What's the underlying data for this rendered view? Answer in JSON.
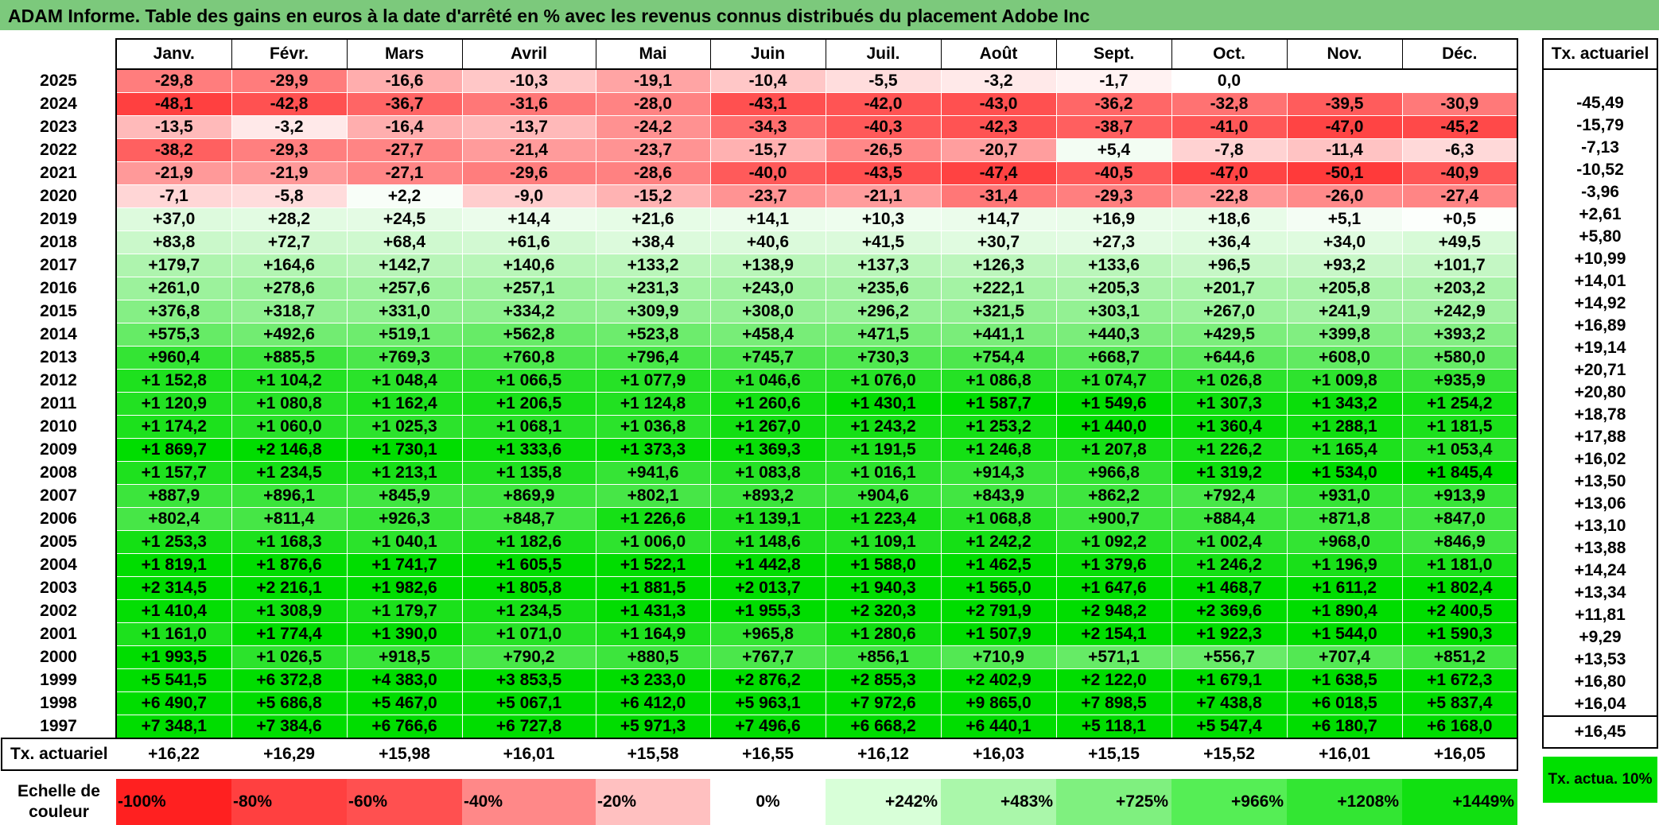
{
  "title": "ADAM Informe. Table des gains en euros à la date d'arrêté en % avec les revenus connus distribués du placement Adobe Inc",
  "months": [
    "Janv.",
    "Févr.",
    "Mars",
    "Avril",
    "Mai",
    "Juin",
    "Juil.",
    "Août",
    "Sept.",
    "Oct.",
    "Nov.",
    "Déc."
  ],
  "side_header": "Tx. actuariel",
  "rows": [
    {
      "year": "2025",
      "values": [
        "-29,8",
        "-29,9",
        "-16,6",
        "-10,3",
        "-19,1",
        "-10,4",
        "-5,5",
        "-3,2",
        "-1,7",
        "0,0",
        "",
        ""
      ],
      "tx": ""
    },
    {
      "year": "2024",
      "values": [
        "-48,1",
        "-42,8",
        "-36,7",
        "-31,6",
        "-28,0",
        "-43,1",
        "-42,0",
        "-43,0",
        "-36,2",
        "-32,8",
        "-39,5",
        "-30,9"
      ],
      "tx": "-45,49"
    },
    {
      "year": "2023",
      "values": [
        "-13,5",
        "-3,2",
        "-16,4",
        "-13,7",
        "-24,2",
        "-34,3",
        "-40,3",
        "-42,3",
        "-38,7",
        "-41,0",
        "-47,0",
        "-45,2"
      ],
      "tx": "-15,79"
    },
    {
      "year": "2022",
      "values": [
        "-38,2",
        "-29,3",
        "-27,7",
        "-21,4",
        "-23,7",
        "-15,7",
        "-26,5",
        "-20,7",
        "+5,4",
        "-7,8",
        "-11,4",
        "-6,3"
      ],
      "tx": "-7,13"
    },
    {
      "year": "2021",
      "values": [
        "-21,9",
        "-21,9",
        "-27,1",
        "-29,6",
        "-28,6",
        "-40,0",
        "-43,5",
        "-47,4",
        "-40,5",
        "-47,0",
        "-50,1",
        "-40,9"
      ],
      "tx": "-10,52"
    },
    {
      "year": "2020",
      "values": [
        "-7,1",
        "-5,8",
        "+2,2",
        "-9,0",
        "-15,2",
        "-23,7",
        "-21,1",
        "-31,4",
        "-29,3",
        "-22,8",
        "-26,0",
        "-27,4"
      ],
      "tx": "-3,96"
    },
    {
      "year": "2019",
      "values": [
        "+37,0",
        "+28,2",
        "+24,5",
        "+14,4",
        "+21,6",
        "+14,1",
        "+10,3",
        "+14,7",
        "+16,9",
        "+18,6",
        "+5,1",
        "+0,5"
      ],
      "tx": "+2,61"
    },
    {
      "year": "2018",
      "values": [
        "+83,8",
        "+72,7",
        "+68,4",
        "+61,6",
        "+38,4",
        "+40,6",
        "+41,5",
        "+30,7",
        "+27,3",
        "+36,4",
        "+34,0",
        "+49,5"
      ],
      "tx": "+5,80"
    },
    {
      "year": "2017",
      "values": [
        "+179,7",
        "+164,6",
        "+142,7",
        "+140,6",
        "+133,2",
        "+138,9",
        "+137,3",
        "+126,3",
        "+133,6",
        "+96,5",
        "+93,2",
        "+101,7"
      ],
      "tx": "+10,99"
    },
    {
      "year": "2016",
      "values": [
        "+261,0",
        "+278,6",
        "+257,6",
        "+257,1",
        "+231,3",
        "+243,0",
        "+235,6",
        "+222,1",
        "+205,3",
        "+201,7",
        "+205,8",
        "+203,2"
      ],
      "tx": "+14,01"
    },
    {
      "year": "2015",
      "values": [
        "+376,8",
        "+318,7",
        "+331,0",
        "+334,2",
        "+309,9",
        "+308,0",
        "+296,2",
        "+321,5",
        "+303,1",
        "+267,0",
        "+241,9",
        "+242,9"
      ],
      "tx": "+14,92"
    },
    {
      "year": "2014",
      "values": [
        "+575,3",
        "+492,6",
        "+519,1",
        "+562,8",
        "+523,8",
        "+458,4",
        "+471,5",
        "+441,1",
        "+440,3",
        "+429,5",
        "+399,8",
        "+393,2"
      ],
      "tx": "+16,89"
    },
    {
      "year": "2013",
      "values": [
        "+960,4",
        "+885,5",
        "+769,3",
        "+760,8",
        "+796,4",
        "+745,7",
        "+730,3",
        "+754,4",
        "+668,7",
        "+644,6",
        "+608,0",
        "+580,0"
      ],
      "tx": "+19,14"
    },
    {
      "year": "2012",
      "values": [
        "+1 152,8",
        "+1 104,2",
        "+1 048,4",
        "+1 066,5",
        "+1 077,9",
        "+1 046,6",
        "+1 076,0",
        "+1 086,8",
        "+1 074,7",
        "+1 026,8",
        "+1 009,8",
        "+935,9"
      ],
      "tx": "+20,71"
    },
    {
      "year": "2011",
      "values": [
        "+1 120,9",
        "+1 080,8",
        "+1 162,4",
        "+1 206,5",
        "+1 124,8",
        "+1 260,6",
        "+1 430,1",
        "+1 587,7",
        "+1 549,6",
        "+1 307,3",
        "+1 343,2",
        "+1 254,2"
      ],
      "tx": "+20,80"
    },
    {
      "year": "2010",
      "values": [
        "+1 174,2",
        "+1 060,0",
        "+1 025,3",
        "+1 068,1",
        "+1 036,8",
        "+1 267,0",
        "+1 243,2",
        "+1 253,2",
        "+1 440,0",
        "+1 360,4",
        "+1 288,1",
        "+1 181,5"
      ],
      "tx": "+18,78"
    },
    {
      "year": "2009",
      "values": [
        "+1 869,7",
        "+2 146,8",
        "+1 730,1",
        "+1 333,6",
        "+1 373,3",
        "+1 369,3",
        "+1 191,5",
        "+1 246,8",
        "+1 207,8",
        "+1 226,2",
        "+1 165,4",
        "+1 053,4"
      ],
      "tx": "+17,88"
    },
    {
      "year": "2008",
      "values": [
        "+1 157,7",
        "+1 234,5",
        "+1 213,1",
        "+1 135,8",
        "+941,6",
        "+1 083,8",
        "+1 016,1",
        "+914,3",
        "+966,8",
        "+1 319,2",
        "+1 534,0",
        "+1 845,4"
      ],
      "tx": "+16,02"
    },
    {
      "year": "2007",
      "values": [
        "+887,9",
        "+896,1",
        "+845,9",
        "+869,9",
        "+802,1",
        "+893,2",
        "+904,6",
        "+843,9",
        "+862,2",
        "+792,4",
        "+931,0",
        "+913,9"
      ],
      "tx": "+13,50"
    },
    {
      "year": "2006",
      "values": [
        "+802,4",
        "+811,4",
        "+926,3",
        "+848,7",
        "+1 226,6",
        "+1 139,1",
        "+1 223,4",
        "+1 068,8",
        "+900,7",
        "+884,4",
        "+871,8",
        "+847,0"
      ],
      "tx": "+13,06"
    },
    {
      "year": "2005",
      "values": [
        "+1 253,3",
        "+1 168,3",
        "+1 040,1",
        "+1 182,6",
        "+1 006,0",
        "+1 148,6",
        "+1 109,1",
        "+1 242,2",
        "+1 092,2",
        "+1 002,4",
        "+968,0",
        "+846,9"
      ],
      "tx": "+13,10"
    },
    {
      "year": "2004",
      "values": [
        "+1 819,1",
        "+1 876,6",
        "+1 741,7",
        "+1 605,5",
        "+1 522,1",
        "+1 442,8",
        "+1 588,0",
        "+1 462,5",
        "+1 379,6",
        "+1 246,2",
        "+1 196,9",
        "+1 181,0"
      ],
      "tx": "+13,88"
    },
    {
      "year": "2003",
      "values": [
        "+2 314,5",
        "+2 216,1",
        "+1 982,6",
        "+1 805,8",
        "+1 881,5",
        "+2 013,7",
        "+1 940,3",
        "+1 565,0",
        "+1 647,6",
        "+1 468,7",
        "+1 611,2",
        "+1 802,4"
      ],
      "tx": "+14,24"
    },
    {
      "year": "2002",
      "values": [
        "+1 410,4",
        "+1 308,9",
        "+1 179,7",
        "+1 234,5",
        "+1 431,3",
        "+1 955,3",
        "+2 320,3",
        "+2 791,9",
        "+2 948,2",
        "+2 369,6",
        "+1 890,4",
        "+2 400,5"
      ],
      "tx": "+13,34"
    },
    {
      "year": "2001",
      "values": [
        "+1 161,0",
        "+1 774,4",
        "+1 390,0",
        "+1 071,0",
        "+1 164,9",
        "+965,8",
        "+1 280,6",
        "+1 507,9",
        "+2 154,1",
        "+1 922,3",
        "+1 544,0",
        "+1 590,3"
      ],
      "tx": "+11,81"
    },
    {
      "year": "2000",
      "values": [
        "+1 993,5",
        "+1 026,5",
        "+918,5",
        "+790,2",
        "+880,5",
        "+767,7",
        "+856,1",
        "+710,9",
        "+571,1",
        "+556,7",
        "+707,4",
        "+851,2"
      ],
      "tx": "+9,29"
    },
    {
      "year": "1999",
      "values": [
        "+5 541,5",
        "+6 372,8",
        "+4 383,0",
        "+3 853,5",
        "+3 233,0",
        "+2 876,2",
        "+2 855,3",
        "+2 402,9",
        "+2 122,0",
        "+1 679,1",
        "+1 638,5",
        "+1 672,3"
      ],
      "tx": "+13,53"
    },
    {
      "year": "1998",
      "values": [
        "+6 490,7",
        "+5 686,8",
        "+5 467,0",
        "+5 067,1",
        "+6 412,0",
        "+5 963,1",
        "+7 972,6",
        "+9 865,0",
        "+7 898,5",
        "+7 438,8",
        "+6 018,5",
        "+5 837,4"
      ],
      "tx": "+16,80"
    },
    {
      "year": "1997",
      "values": [
        "+7 348,1",
        "+7 384,6",
        "+6 766,6",
        "+6 727,8",
        "+5 971,3",
        "+7 496,6",
        "+6 668,2",
        "+6 440,1",
        "+5 118,1",
        "+5 547,4",
        "+6 180,7",
        "+6 168,0"
      ],
      "tx": "+16,04"
    }
  ],
  "tx_row": {
    "label": "Tx. actuariel",
    "values": [
      "+16,22",
      "+16,29",
      "+15,98",
      "+16,01",
      "+15,58",
      "+16,55",
      "+16,12",
      "+16,03",
      "+15,15",
      "+15,52",
      "+16,01",
      "+16,05"
    ],
    "total": "+16,45"
  },
  "scale": {
    "label": "Echelle de couleur",
    "items": [
      {
        "label": "-100%",
        "color": "#ff2020"
      },
      {
        "label": "-80%",
        "color": "#ff4040"
      },
      {
        "label": "-60%",
        "color": "#ff5050"
      },
      {
        "label": "-40%",
        "color": "#ff8888"
      },
      {
        "label": "-20%",
        "color": "#ffc0c0"
      },
      {
        "label": "0%",
        "color": "#ffffff"
      },
      {
        "label": "+242%",
        "color": "#d8ffd8"
      },
      {
        "label": "+483%",
        "color": "#aaf7aa"
      },
      {
        "label": "+725%",
        "color": "#7ff07f"
      },
      {
        "label": "+966%",
        "color": "#55ee55"
      },
      {
        "label": "+1208%",
        "color": "#33e633"
      },
      {
        "label": "+1449%",
        "color": "#11e011"
      }
    ],
    "side_label": "Tx. actua. 10%",
    "side_color": "#00e000"
  },
  "colors": {
    "title_bg": "#7cc97c",
    "neg_max": "#ff3a3a",
    "pos_max": "#00dd00"
  }
}
